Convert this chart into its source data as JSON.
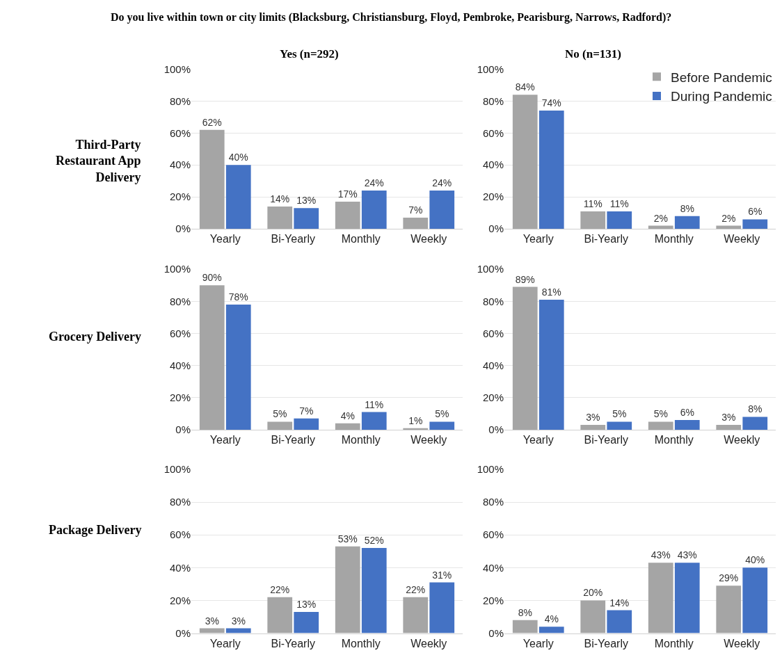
{
  "chart_data": [
    {
      "type": "bar",
      "title": "Do you live within town or city limits (Blacksburg, Christiansburg, Floyd, Pembroke, Pearisburg, Narrows, Radford)?",
      "subtitle": "Yes (n=292)",
      "ylabel": "Third-Party Restaurant App Delivery",
      "categories": [
        "Yearly",
        "Bi-Yearly",
        "Monthly",
        "Weekly"
      ],
      "ylim": [
        0,
        100
      ],
      "yticks": [
        {
          "value": 0,
          "label": "0%"
        },
        {
          "value": 20,
          "label": "20%"
        },
        {
          "value": 40,
          "label": "40%"
        },
        {
          "value": 60,
          "label": "60%"
        },
        {
          "value": 80,
          "label": "80%"
        },
        {
          "value": 100,
          "label": "100%"
        }
      ],
      "grid": "y",
      "series": [
        {
          "color": "#a5a5a5",
          "values": [
            62,
            14,
            17,
            7
          ],
          "value_labels": [
            "62%",
            "14%",
            "17%",
            "7%"
          ]
        },
        {
          "color": "#4472c4",
          "values": [
            40,
            13,
            24,
            24
          ],
          "value_labels": [
            "40%",
            "13%",
            "24%",
            "24%"
          ]
        }
      ]
    },
    {
      "type": "bar",
      "subtitle": "No (n=131)",
      "categories": [
        "Yearly",
        "Bi-Yearly",
        "Monthly",
        "Weekly"
      ],
      "ylim": [
        0,
        100
      ],
      "yticks": [
        {
          "value": 0,
          "label": "0%"
        },
        {
          "value": 20,
          "label": "20%"
        },
        {
          "value": 40,
          "label": "40%"
        },
        {
          "value": 60,
          "label": "60%"
        },
        {
          "value": 80,
          "label": "80%"
        },
        {
          "value": 100,
          "label": "100%"
        }
      ],
      "grid": "y",
      "legend": "top right",
      "series": [
        {
          "name": "Before Pandemic",
          "color": "#a5a5a5",
          "values": [
            84,
            11,
            2,
            2
          ],
          "value_labels": [
            "84%",
            "11%",
            "2%",
            "2%"
          ]
        },
        {
          "name": "During Pandemic",
          "color": "#4472c4",
          "values": [
            74,
            11,
            8,
            6
          ],
          "value_labels": [
            "74%",
            "11%",
            "8%",
            "6%"
          ]
        }
      ]
    },
    {
      "type": "bar",
      "ylabel": "Grocery Delivery",
      "categories": [
        "Yearly",
        "Bi-Yearly",
        "Monthly",
        "Weekly"
      ],
      "ylim": [
        0,
        100
      ],
      "yticks": [
        {
          "value": 0,
          "label": "0%"
        },
        {
          "value": 20,
          "label": "20%"
        },
        {
          "value": 40,
          "label": "40%"
        },
        {
          "value": 60,
          "label": "60%"
        },
        {
          "value": 80,
          "label": "80%"
        },
        {
          "value": 100,
          "label": "100%"
        }
      ],
      "grid": "y",
      "series": [
        {
          "color": "#a5a5a5",
          "values": [
            90,
            5,
            4,
            1
          ],
          "value_labels": [
            "90%",
            "5%",
            "4%",
            "1%"
          ]
        },
        {
          "color": "#4472c4",
          "values": [
            78,
            7,
            11,
            5
          ],
          "value_labels": [
            "78%",
            "7%",
            "11%",
            "5%"
          ]
        }
      ]
    },
    {
      "type": "bar",
      "categories": [
        "Yearly",
        "Bi-Yearly",
        "Monthly",
        "Weekly"
      ],
      "ylim": [
        0,
        100
      ],
      "yticks": [
        {
          "value": 0,
          "label": "0%"
        },
        {
          "value": 20,
          "label": "20%"
        },
        {
          "value": 40,
          "label": "40%"
        },
        {
          "value": 60,
          "label": "60%"
        },
        {
          "value": 80,
          "label": "80%"
        },
        {
          "value": 100,
          "label": "100%"
        }
      ],
      "grid": "y",
      "series": [
        {
          "color": "#a5a5a5",
          "values": [
            89,
            3,
            5,
            3
          ],
          "value_labels": [
            "89%",
            "3%",
            "5%",
            "3%"
          ]
        },
        {
          "color": "#4472c4",
          "values": [
            81,
            5,
            6,
            8
          ],
          "value_labels": [
            "81%",
            "5%",
            "6%",
            "8%"
          ]
        }
      ]
    },
    {
      "type": "bar",
      "ylabel": "Package Delivery",
      "categories": [
        "Yearly",
        "Bi-Yearly",
        "Monthly",
        "Weekly"
      ],
      "ylim": [
        0,
        100
      ],
      "yticks": [
        {
          "value": 0,
          "label": "0%"
        },
        {
          "value": 20,
          "label": "20%"
        },
        {
          "value": 40,
          "label": "40%"
        },
        {
          "value": 60,
          "label": "60%"
        },
        {
          "value": 80,
          "label": "80%"
        },
        {
          "value": 100,
          "label": "100%"
        }
      ],
      "grid": "y",
      "series": [
        {
          "color": "#a5a5a5",
          "values": [
            3,
            22,
            53,
            22
          ],
          "value_labels": [
            "3%",
            "22%",
            "53%",
            "22%"
          ]
        },
        {
          "color": "#4472c4",
          "values": [
            3,
            13,
            52,
            31
          ],
          "value_labels": [
            "3%",
            "13%",
            "52%",
            "31%"
          ]
        }
      ]
    },
    {
      "type": "bar",
      "categories": [
        "Yearly",
        "Bi-Yearly",
        "Monthly",
        "Weekly"
      ],
      "ylim": [
        0,
        100
      ],
      "yticks": [
        {
          "value": 0,
          "label": "0%"
        },
        {
          "value": 20,
          "label": "20%"
        },
        {
          "value": 40,
          "label": "40%"
        },
        {
          "value": 60,
          "label": "60%"
        },
        {
          "value": 80,
          "label": "80%"
        },
        {
          "value": 100,
          "label": "100%"
        }
      ],
      "grid": "y",
      "series": [
        {
          "color": "#a5a5a5",
          "values": [
            8,
            20,
            43,
            29
          ],
          "value_labels": [
            "8%",
            "20%",
            "43%",
            "29%"
          ]
        },
        {
          "color": "#4472c4",
          "values": [
            4,
            14,
            43,
            40
          ],
          "value_labels": [
            "4%",
            "14%",
            "43%",
            "40%"
          ]
        }
      ]
    }
  ]
}
